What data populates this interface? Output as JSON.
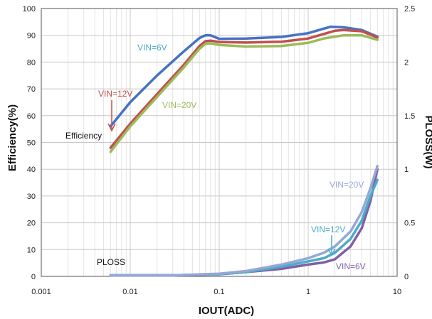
{
  "chart_data": {
    "type": "line",
    "title": "",
    "xlabel": "IOUT(ADC)",
    "ylabel": "Efficiency(%)",
    "y2label": "PLOSS(W)",
    "xscale": "log",
    "xlim": [
      0.001,
      10
    ],
    "ylim": [
      0,
      100
    ],
    "y2lim": [
      0,
      2.5
    ],
    "grid": true,
    "x_ticks": [
      0.001,
      0.01,
      0.1,
      1,
      10
    ],
    "x_tick_labels": [
      "0.001",
      "0.01",
      "0.1",
      "1",
      "10"
    ],
    "y_ticks": [
      0,
      10,
      20,
      30,
      40,
      50,
      60,
      70,
      80,
      90,
      100
    ],
    "y_tick_labels": [
      "0",
      "10",
      "20",
      "30",
      "40",
      "50",
      "60",
      "70",
      "80",
      "90",
      "100"
    ],
    "y2_ticks": [
      0,
      0.5,
      1,
      1.5,
      2,
      2.5
    ],
    "y2_tick_labels": [
      "0",
      "0.5",
      "1",
      "1.5",
      "2",
      "2.5"
    ],
    "series": [
      {
        "name": "VIN=6V",
        "axis": "left",
        "color": "#4472c4",
        "x": [
          0.006,
          0.01,
          0.02,
          0.04,
          0.06,
          0.07,
          0.08,
          0.1,
          0.2,
          0.5,
          1,
          1.5,
          1.8,
          2.5,
          4,
          6
        ],
        "y": [
          56,
          65,
          75,
          84,
          89,
          90,
          90,
          88.7,
          88.8,
          89.4,
          90.8,
          92.5,
          93.2,
          93.0,
          92.0,
          89.5
        ]
      },
      {
        "name": "VIN=12V",
        "axis": "left",
        "color": "#c0504d",
        "x": [
          0.006,
          0.01,
          0.02,
          0.04,
          0.06,
          0.07,
          0.08,
          0.1,
          0.2,
          0.5,
          1,
          1.5,
          2,
          2.5,
          4,
          6
        ],
        "y": [
          48,
          57,
          68,
          79,
          86,
          87.8,
          88,
          87.5,
          87.3,
          87.6,
          88.8,
          90.5,
          91.7,
          92.0,
          91.5,
          89.2
        ]
      },
      {
        "name": "VIN=20V",
        "axis": "left",
        "color": "#9bbb59",
        "x": [
          0.006,
          0.01,
          0.02,
          0.04,
          0.06,
          0.07,
          0.08,
          0.1,
          0.2,
          0.5,
          1,
          1.5,
          2,
          2.5,
          4,
          6
        ],
        "y": [
          46.5,
          56,
          67,
          78,
          85,
          86.8,
          87,
          86.4,
          85.8,
          86.0,
          87.2,
          88.8,
          89.5,
          90.0,
          90.0,
          88.3
        ]
      },
      {
        "name": "VIN=6V",
        "axis": "right",
        "color": "#7f5fa8",
        "x": [
          0.006,
          0.01,
          0.03,
          0.1,
          0.2,
          0.5,
          1,
          1.5,
          2,
          3,
          4,
          5,
          6
        ],
        "y": [
          0.01,
          0.01,
          0.01,
          0.02,
          0.04,
          0.07,
          0.11,
          0.13,
          0.16,
          0.28,
          0.45,
          0.7,
          1.0
        ]
      },
      {
        "name": "VIN=12V",
        "axis": "right",
        "color": "#4bacc6",
        "x": [
          0.006,
          0.01,
          0.03,
          0.1,
          0.2,
          0.5,
          1,
          1.5,
          2,
          3,
          4,
          5,
          6
        ],
        "y": [
          0.01,
          0.01,
          0.01,
          0.02,
          0.04,
          0.09,
          0.14,
          0.17,
          0.22,
          0.35,
          0.52,
          0.75,
          0.9
        ]
      },
      {
        "name": "VIN=20V",
        "axis": "right",
        "color": "#95a7d5",
        "x": [
          0.006,
          0.01,
          0.03,
          0.1,
          0.2,
          0.5,
          1,
          1.5,
          2,
          3,
          4,
          5,
          6
        ],
        "y": [
          0.01,
          0.01,
          0.01,
          0.025,
          0.05,
          0.11,
          0.17,
          0.22,
          0.28,
          0.42,
          0.6,
          0.82,
          1.03
        ]
      }
    ],
    "annotations": {
      "vin6_eff": "VIN=6V",
      "vin12_eff": "VIN=12V",
      "vin20_eff": "VIN=20V",
      "efficiency": "Efficiency",
      "ploss": "PLOSS",
      "vin20_loss": "VIN=20V",
      "vin12_loss": "VIN=12V",
      "vin6_loss": "VIN=6V"
    }
  }
}
